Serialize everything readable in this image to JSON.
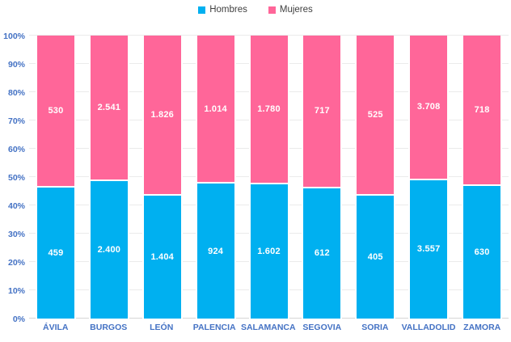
{
  "chart_data": {
    "type": "bar",
    "stacked": true,
    "normalized": "percent",
    "title": "",
    "xlabel": "",
    "ylabel": "",
    "ylim": [
      0,
      100
    ],
    "grid": true,
    "legend_position": "top",
    "yticks": [
      "0%",
      "10%",
      "20%",
      "30%",
      "40%",
      "50%",
      "60%",
      "70%",
      "80%",
      "90%",
      "100%"
    ],
    "categories": [
      "ÁVILA",
      "BURGOS",
      "LEÓN",
      "PALENCIA",
      "SALAMANCA",
      "SEGOVIA",
      "SORIA",
      "VALLADOLID",
      "ZAMORA"
    ],
    "series": [
      {
        "name": "Hombres",
        "color": "#00b0f0",
        "values": [
          459,
          2400,
          1404,
          924,
          1602,
          612,
          405,
          3557,
          630
        ],
        "labels": [
          "459",
          "2.400",
          "1.404",
          "924",
          "1.602",
          "612",
          "405",
          "3.557",
          "630"
        ]
      },
      {
        "name": "Mujeres",
        "color": "#ff6699",
        "values": [
          530,
          2541,
          1826,
          1014,
          1780,
          717,
          525,
          3708,
          718
        ],
        "labels": [
          "530",
          "2.541",
          "1.826",
          "1.014",
          "1.780",
          "717",
          "525",
          "3.708",
          "718"
        ]
      }
    ]
  },
  "legend": {
    "items": [
      {
        "label": "Hombres",
        "color": "#00b0f0"
      },
      {
        "label": "Mujeres",
        "color": "#ff6699"
      }
    ]
  },
  "style": {
    "axis_label_color": "#4472c4",
    "gridline_color": "#ebebeb",
    "axisline_color": "#d6d6d6",
    "data_label_color": "#ffffff",
    "background": "#ffffff"
  }
}
